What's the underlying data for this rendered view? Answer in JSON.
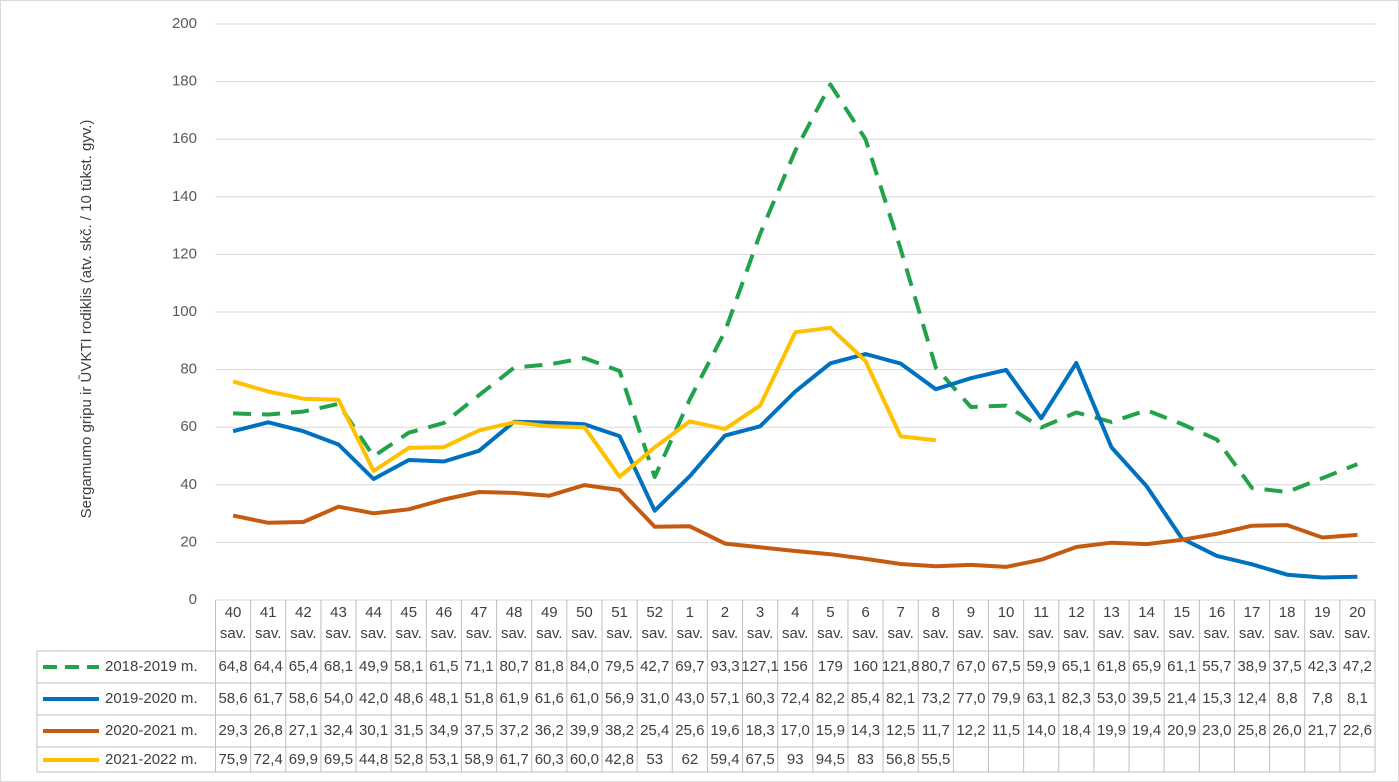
{
  "chart_data": {
    "type": "line",
    "y_label": "Sergamumo gripu ir ŪVKTI rodiklis (atv. skč. / 10 tūkst. gyv.)",
    "categories": [
      "40 sav.",
      "41 sav.",
      "42 sav.",
      "43 sav.",
      "44 sav.",
      "45 sav.",
      "46 sav.",
      "47 sav.",
      "48 sav.",
      "49 sav.",
      "50 sav.",
      "51 sav.",
      "52 sav.",
      "1 sav.",
      "2 sav.",
      "3 sav.",
      "4 sav.",
      "5 sav.",
      "6 sav.",
      "7 sav.",
      "8 sav.",
      "9 sav.",
      "10 sav.",
      "11 sav.",
      "12 sav.",
      "13 sav.",
      "14 sav.",
      "15 sav.",
      "16 sav.",
      "17 sav.",
      "18 sav.",
      "19 sav.",
      "20 sav."
    ],
    "ylim": [
      0,
      200
    ],
    "yticks": [
      0,
      20,
      40,
      60,
      80,
      100,
      120,
      140,
      160,
      180,
      200
    ],
    "grid": true,
    "series": [
      {
        "name": "2018-2019 m.",
        "color": "#22a24a",
        "style": "dashed",
        "values": [
          64.8,
          64.4,
          65.4,
          68.1,
          49.9,
          58.1,
          61.5,
          71.1,
          80.7,
          81.8,
          84.0,
          79.5,
          42.7,
          69.7,
          93.3,
          127.1,
          156,
          179,
          160,
          121.8,
          80.7,
          67.0,
          67.5,
          59.9,
          65.1,
          61.8,
          65.9,
          61.1,
          55.7,
          38.9,
          37.5,
          42.3,
          47.2
        ],
        "value_labels": [
          "64,8",
          "64,4",
          "65,4",
          "68,1",
          "49,9",
          "58,1",
          "61,5",
          "71,1",
          "80,7",
          "81,8",
          "84,0",
          "79,5",
          "42,7",
          "69,7",
          "93,3",
          "127,1",
          "156",
          "179",
          "160",
          "121,8",
          "80,7",
          "67,0",
          "67,5",
          "59,9",
          "65,1",
          "61,8",
          "65,9",
          "61,1",
          "55,7",
          "38,9",
          "37,5",
          "42,3",
          "47,2"
        ]
      },
      {
        "name": "2019-2020 m.",
        "color": "#0070c0",
        "style": "solid",
        "values": [
          58.6,
          61.7,
          58.6,
          54.0,
          42.0,
          48.6,
          48.1,
          51.8,
          61.9,
          61.6,
          61.0,
          56.9,
          31.0,
          43.0,
          57.1,
          60.3,
          72.4,
          82.2,
          85.4,
          82.1,
          73.2,
          77.0,
          79.9,
          63.1,
          82.3,
          53.0,
          39.5,
          21.4,
          15.3,
          12.4,
          8.8,
          7.8,
          8.1
        ],
        "value_labels": [
          "58,6",
          "61,7",
          "58,6",
          "54,0",
          "42,0",
          "48,6",
          "48,1",
          "51,8",
          "61,9",
          "61,6",
          "61,0",
          "56,9",
          "31,0",
          "43,0",
          "57,1",
          "60,3",
          "72,4",
          "82,2",
          "85,4",
          "82,1",
          "73,2",
          "77,0",
          "79,9",
          "63,1",
          "82,3",
          "53,0",
          "39,5",
          "21,4",
          "15,3",
          "12,4",
          "8,8",
          "7,8",
          "8,1"
        ]
      },
      {
        "name": "2020-2021 m.",
        "color": "#c55a11",
        "style": "solid",
        "values": [
          29.3,
          26.8,
          27.1,
          32.4,
          30.1,
          31.5,
          34.9,
          37.5,
          37.2,
          36.2,
          39.9,
          38.2,
          25.4,
          25.6,
          19.6,
          18.3,
          17.0,
          15.9,
          14.3,
          12.5,
          11.7,
          12.2,
          11.5,
          14.0,
          18.4,
          19.9,
          19.4,
          20.9,
          23.0,
          25.8,
          26.0,
          21.7,
          22.6
        ],
        "value_labels": [
          "29,3",
          "26,8",
          "27,1",
          "32,4",
          "30,1",
          "31,5",
          "34,9",
          "37,5",
          "37,2",
          "36,2",
          "39,9",
          "38,2",
          "25,4",
          "25,6",
          "19,6",
          "18,3",
          "17,0",
          "15,9",
          "14,3",
          "12,5",
          "11,7",
          "12,2",
          "11,5",
          "14,0",
          "18,4",
          "19,9",
          "19,4",
          "20,9",
          "23,0",
          "25,8",
          "26,0",
          "21,7",
          "22,6"
        ]
      },
      {
        "name": "2021-2022 m.",
        "color": "#ffc000",
        "style": "solid",
        "values": [
          75.9,
          72.4,
          69.9,
          69.5,
          44.8,
          52.8,
          53.1,
          58.9,
          61.7,
          60.3,
          60.0,
          42.8,
          53,
          62,
          59.4,
          67.5,
          93,
          94.5,
          83,
          56.8,
          55.5,
          null,
          null,
          null,
          null,
          null,
          null,
          null,
          null,
          null,
          null,
          null,
          null
        ],
        "value_labels": [
          "75,9",
          "72,4",
          "69,9",
          "69,5",
          "44,8",
          "52,8",
          "53,1",
          "58,9",
          "61,7",
          "60,3",
          "60,0",
          "42,8",
          "53",
          "62",
          "59,4",
          "67,5",
          "93",
          "94,5",
          "83",
          "56,8",
          "55,5",
          null,
          null,
          null,
          null,
          null,
          null,
          null,
          null,
          null,
          null,
          null,
          null
        ]
      }
    ]
  }
}
